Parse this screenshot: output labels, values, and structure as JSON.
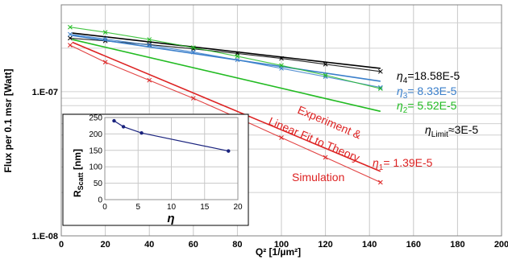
{
  "chart_data": {
    "type": "line",
    "ylabel": "Flux per 0.1 msr [Watt]",
    "xlabel": "Q² [1/µm²]",
    "xlim": [
      0,
      200
    ],
    "ylim": [
      1e-08,
      4e-07
    ],
    "y_scale": "log",
    "x_ticks": [
      0,
      20,
      40,
      60,
      80,
      100,
      120,
      140,
      160,
      180,
      200
    ],
    "x_tick_labels": [
      "0",
      "20",
      "40",
      "60",
      "80",
      "100",
      "120",
      "140",
      "160",
      "180",
      "200"
    ],
    "y_ticks": [
      1e-08,
      1e-07
    ],
    "y_tick_labels": [
      "1.E-08",
      "1.E-07"
    ],
    "grid": true,
    "series": [
      {
        "eta_symbol": "η",
        "eta_subscript": "4",
        "eta_value": "=18.58E-5",
        "color": "#000000",
        "measured": {
          "x": [
            4,
            20,
            40,
            60,
            80,
            100,
            120,
            145
          ],
          "y": [
            2.35e-07,
            2.25e-07,
            2.12e-07,
            1.98e-07,
            1.84e-07,
            1.7e-07,
            1.55e-07,
            1.38e-07
          ]
        },
        "fit": {
          "x": [
            5,
            145
          ],
          "y": [
            2.55e-07,
            1.45e-07
          ]
        }
      },
      {
        "eta_symbol": "η",
        "eta_subscript": "3",
        "eta_value": "= 8.33E-5",
        "color": "#3a7fcb",
        "measured": {
          "x": [
            4,
            20,
            40,
            60,
            80,
            100,
            120,
            145
          ],
          "y": [
            2.5e-07,
            2.32e-07,
            2.1e-07,
            1.88e-07,
            1.66e-07,
            1.45e-07,
            1.27e-07,
            1.07e-07
          ]
        },
        "fit": {
          "x": [
            5,
            145
          ],
          "y": [
            2.45e-07,
            1.18e-07
          ]
        }
      },
      {
        "eta_symbol": "η",
        "eta_subscript": "2",
        "eta_value": "= 5.52E-5",
        "color": "#22bb22",
        "measured": {
          "x": [
            4,
            20,
            40,
            60,
            80,
            100,
            120,
            145
          ],
          "y": [
            2.8e-07,
            2.58e-07,
            2.3e-07,
            2.02e-07,
            1.76e-07,
            1.52e-07,
            1.3e-07,
            1.05e-07
          ]
        },
        "fit": {
          "x": [
            5,
            145
          ],
          "y": [
            2.3e-07,
            7.3e-08
          ]
        }
      },
      {
        "eta_symbol": "η",
        "eta_subscript": "1",
        "eta_value": "= 1.39E-5",
        "color": "#dd2222",
        "measured": {
          "x": [
            4,
            20,
            40,
            60,
            80,
            100,
            120,
            145
          ],
          "y": [
            2.1e-07,
            1.6e-07,
            1.2e-07,
            9e-08,
            6.6e-08,
            4.8e-08,
            3.5e-08,
            2.35e-08
          ]
        },
        "fit": {
          "x": [
            5,
            145
          ],
          "y": [
            2.2e-07,
            2.8e-08
          ]
        }
      }
    ],
    "annotations": {
      "experiment_label_1": "Experiment &",
      "experiment_label_2": "Linear Fit to Theory",
      "simulation_label": "Simulation",
      "eta_limit_symbol": "η",
      "eta_limit_subscript": "Limit",
      "eta_limit_value": "≈3E-5"
    },
    "inset": {
      "type": "line",
      "xlabel": "η",
      "ylabel_main": "R",
      "ylabel_sub": "Scatt",
      "ylabel_unit": " [nm]",
      "xlim": [
        0,
        20
      ],
      "ylim": [
        0,
        250
      ],
      "x_ticks": [
        0,
        5,
        10,
        15,
        20
      ],
      "x_tick_labels": [
        "0",
        "5",
        "10",
        "15",
        "20"
      ],
      "y_ticks": [
        0,
        50,
        100,
        150,
        200,
        250
      ],
      "y_tick_labels": [
        "0",
        "50",
        "100",
        "150",
        "200",
        "250"
      ],
      "x": [
        1.39,
        2.8,
        5.52,
        18.58
      ],
      "y": [
        240,
        222,
        203,
        148
      ],
      "color": "#1a237e"
    }
  }
}
